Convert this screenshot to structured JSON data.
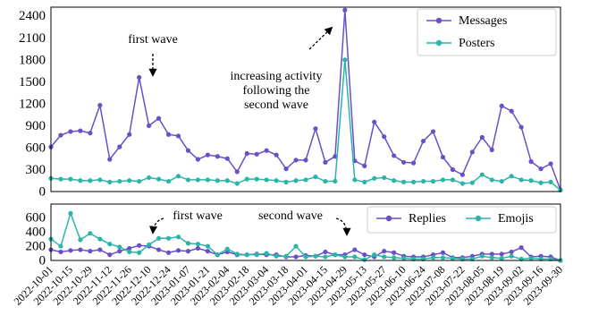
{
  "chart_data": [
    {
      "type": "line",
      "x": [
        "2022-10-01",
        "2022-10-08",
        "2022-10-15",
        "2022-10-22",
        "2022-10-29",
        "2022-11-05",
        "2022-11-12",
        "2022-11-19",
        "2022-11-26",
        "2022-12-03",
        "2022-12-10",
        "2022-12-17",
        "2022-12-24",
        "2022-12-31",
        "2023-01-07",
        "2023-01-14",
        "2023-01-21",
        "2023-01-28",
        "2023-02-04",
        "2023-02-11",
        "2023-02-18",
        "2023-02-25",
        "2023-03-04",
        "2023-03-11",
        "2023-03-18",
        "2023-03-25",
        "2023-04-01",
        "2023-04-08",
        "2023-04-15",
        "2023-04-22",
        "2023-04-29",
        "2023-05-06",
        "2023-05-13",
        "2023-05-20",
        "2023-05-27",
        "2023-06-03",
        "2023-06-10",
        "2023-06-17",
        "2023-06-24",
        "2023-07-01",
        "2023-07-08",
        "2023-07-15",
        "2023-07-22",
        "2023-07-29",
        "2023-08-05",
        "2023-08-12",
        "2023-08-19",
        "2023-08-26",
        "2023-09-02",
        "2023-09-09",
        "2023-09-16",
        "2023-09-23",
        "2023-09-30"
      ],
      "xlim": [
        "2022-10-01",
        "2023-09-30"
      ],
      "ylim": [
        0,
        2520
      ],
      "yticks": [
        0,
        300,
        600,
        900,
        1200,
        1500,
        1800,
        2100,
        2400
      ],
      "grid": true,
      "legend": "upper right",
      "legend_columns": 1,
      "series": [
        {
          "name": "Messages",
          "color": "#6a4fc7",
          "values": [
            610,
            770,
            820,
            830,
            800,
            1180,
            440,
            610,
            780,
            1560,
            900,
            1000,
            780,
            760,
            560,
            440,
            500,
            480,
            450,
            270,
            520,
            510,
            560,
            500,
            310,
            430,
            430,
            860,
            400,
            480,
            2480,
            420,
            350,
            950,
            750,
            490,
            400,
            390,
            690,
            820,
            470,
            300,
            230,
            540,
            740,
            570,
            1170,
            1100,
            880,
            410,
            310,
            380,
            20
          ]
        },
        {
          "name": "Posters",
          "color": "#2bb5a8",
          "values": [
            180,
            170,
            170,
            150,
            150,
            160,
            130,
            140,
            150,
            140,
            190,
            170,
            140,
            210,
            160,
            160,
            160,
            150,
            150,
            110,
            170,
            170,
            160,
            150,
            130,
            150,
            160,
            200,
            140,
            140,
            1800,
            160,
            130,
            180,
            190,
            150,
            130,
            130,
            140,
            140,
            160,
            160,
            110,
            120,
            230,
            160,
            140,
            210,
            160,
            150,
            120,
            130,
            20
          ]
        }
      ],
      "annotations": [
        [
          "first wave"
        ],
        [
          "increasing activity",
          "following the",
          "second wave"
        ]
      ]
    },
    {
      "type": "line",
      "x": [
        "2022-10-01",
        "2022-10-08",
        "2022-10-15",
        "2022-10-22",
        "2022-10-29",
        "2022-11-05",
        "2022-11-12",
        "2022-11-19",
        "2022-11-26",
        "2022-12-03",
        "2022-12-10",
        "2022-12-17",
        "2022-12-24",
        "2022-12-31",
        "2023-01-07",
        "2023-01-14",
        "2023-01-21",
        "2023-01-28",
        "2023-02-04",
        "2023-02-11",
        "2023-02-18",
        "2023-02-25",
        "2023-03-04",
        "2023-03-11",
        "2023-03-18",
        "2023-03-25",
        "2023-04-01",
        "2023-04-08",
        "2023-04-15",
        "2023-04-22",
        "2023-04-29",
        "2023-05-06",
        "2023-05-13",
        "2023-05-20",
        "2023-05-27",
        "2023-06-03",
        "2023-06-10",
        "2023-06-17",
        "2023-06-24",
        "2023-07-01",
        "2023-07-08",
        "2023-07-15",
        "2023-07-22",
        "2023-07-29",
        "2023-08-05",
        "2023-08-12",
        "2023-08-19",
        "2023-08-26",
        "2023-09-02",
        "2023-09-09",
        "2023-09-16",
        "2023-09-23",
        "2023-09-30"
      ],
      "xlim": [
        "2022-10-01",
        "2023-09-30"
      ],
      "xticks": [
        "2022-10-01",
        "2022-10-15",
        "2022-10-29",
        "2022-11-12",
        "2022-11-26",
        "2022-12-10",
        "2022-12-24",
        "2023-01-07",
        "2023-01-21",
        "2023-02-04",
        "2023-02-18",
        "2023-03-04",
        "2023-03-18",
        "2023-04-01",
        "2023-04-15",
        "2023-04-29",
        "2023-05-13",
        "2023-05-27",
        "2023-06-10",
        "2023-06-24",
        "2023-07-08",
        "2023-07-22",
        "2023-08-05",
        "2023-08-19",
        "2023-09-02",
        "2023-09-16",
        "2023-09-30"
      ],
      "ylim": [
        0,
        790
      ],
      "yticks": [
        0,
        200,
        400,
        600
      ],
      "grid": true,
      "legend": "upper right",
      "legend_columns": 2,
      "series": [
        {
          "name": "Replies",
          "color": "#6a4fc7",
          "values": [
            150,
            120,
            140,
            150,
            130,
            150,
            80,
            130,
            170,
            210,
            200,
            150,
            110,
            140,
            130,
            170,
            130,
            80,
            120,
            80,
            80,
            90,
            80,
            80,
            50,
            50,
            70,
            60,
            120,
            80,
            80,
            150,
            80,
            50,
            130,
            110,
            60,
            50,
            50,
            80,
            110,
            40,
            40,
            60,
            90,
            90,
            90,
            120,
            180,
            50,
            60,
            50,
            0
          ]
        },
        {
          "name": "Emojis",
          "color": "#2bb5a8",
          "values": [
            300,
            200,
            660,
            290,
            380,
            300,
            230,
            190,
            120,
            110,
            220,
            310,
            310,
            330,
            240,
            230,
            200,
            80,
            160,
            90,
            80,
            80,
            100,
            60,
            60,
            200,
            50,
            60,
            50,
            80,
            50,
            50,
            10,
            80,
            50,
            40,
            30,
            20,
            20,
            40,
            40,
            30,
            20,
            20,
            60,
            40,
            30,
            60,
            20,
            30,
            20,
            20,
            0
          ]
        }
      ],
      "annotations": [
        [
          "first wave"
        ],
        [
          "second wave"
        ]
      ]
    }
  ]
}
